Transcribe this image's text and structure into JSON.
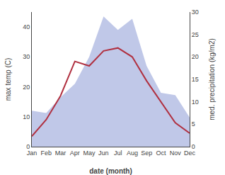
{
  "chart_data": {
    "type": "line",
    "xlabel": "date (month)",
    "ylabel": "max temp (C)",
    "y2label": "med. precipitation (kg/m2)",
    "categories": [
      "Jan",
      "Feb",
      "Mar",
      "Apr",
      "May",
      "Jun",
      "Jul",
      "Aug",
      "Sep",
      "Oct",
      "Nov",
      "Dec"
    ],
    "series": [
      {
        "type": "area",
        "axis": "y2",
        "color": "#c0c8e8",
        "values": [
          8.0,
          7.5,
          11.0,
          14.0,
          20.0,
          29.0,
          26.0,
          28.5,
          18.0,
          12.0,
          11.5,
          6.5
        ]
      },
      {
        "type": "line",
        "color": "#b03040",
        "values": [
          3.5,
          9.0,
          17.0,
          28.5,
          27.0,
          32.0,
          33.0,
          30.0,
          22.0,
          15.0,
          8.0,
          4.5
        ]
      }
    ],
    "ylim": [
      0,
      45
    ],
    "yticks": [
      0,
      10,
      20,
      30,
      40
    ],
    "y2lim": [
      0,
      30
    ],
    "y2ticks": [
      0,
      5,
      10,
      15,
      20,
      25,
      30
    ],
    "grid": false
  }
}
